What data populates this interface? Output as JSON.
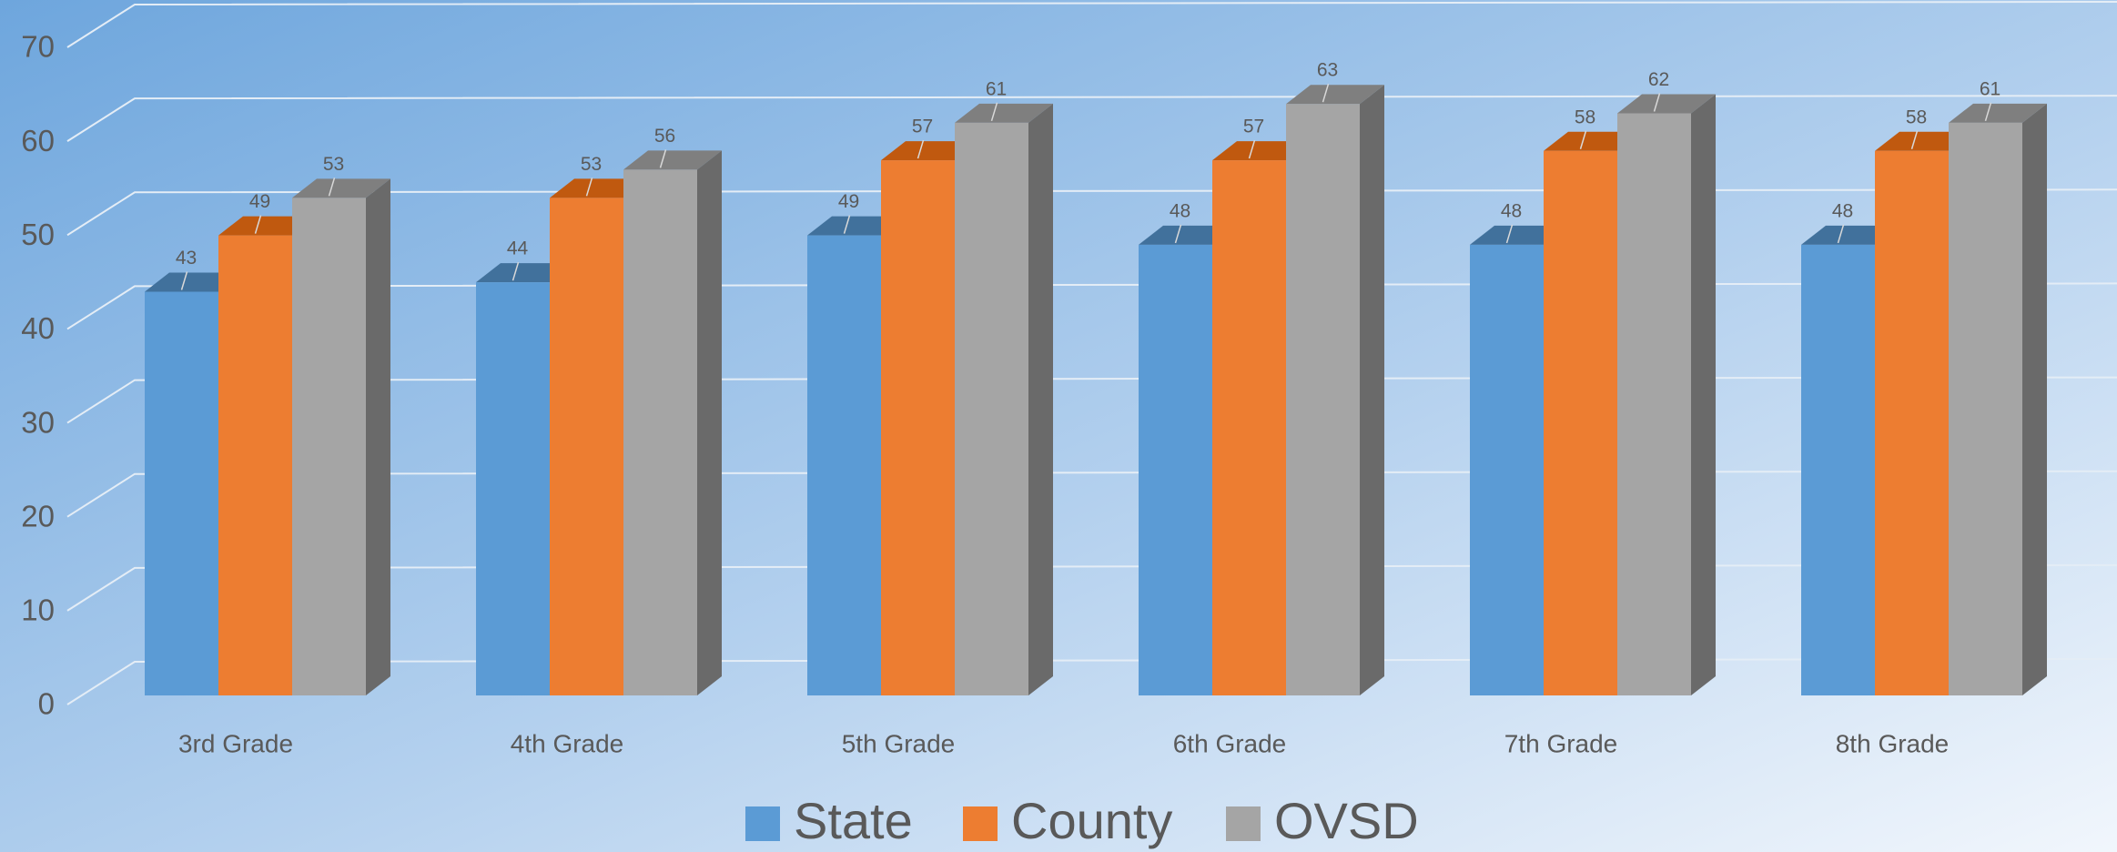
{
  "chart_data": {
    "type": "bar3d",
    "categories": [
      "3rd Grade",
      "4th Grade",
      "5th Grade",
      "6th Grade",
      "7th Grade",
      "8th Grade"
    ],
    "series": [
      {
        "name": "State",
        "color": "#5b9bd5",
        "values": [
          43,
          44,
          49,
          48,
          48,
          48
        ]
      },
      {
        "name": "County",
        "color": "#ed7d31",
        "values": [
          49,
          53,
          57,
          57,
          58,
          58
        ]
      },
      {
        "name": "OVSD",
        "color": "#a5a5a5",
        "values": [
          53,
          56,
          61,
          63,
          62,
          61
        ]
      }
    ],
    "ylim": [
      0,
      70
    ],
    "yticks": [
      0,
      10,
      20,
      30,
      40,
      50,
      60,
      70
    ],
    "grid": true,
    "legend": "bottom"
  }
}
